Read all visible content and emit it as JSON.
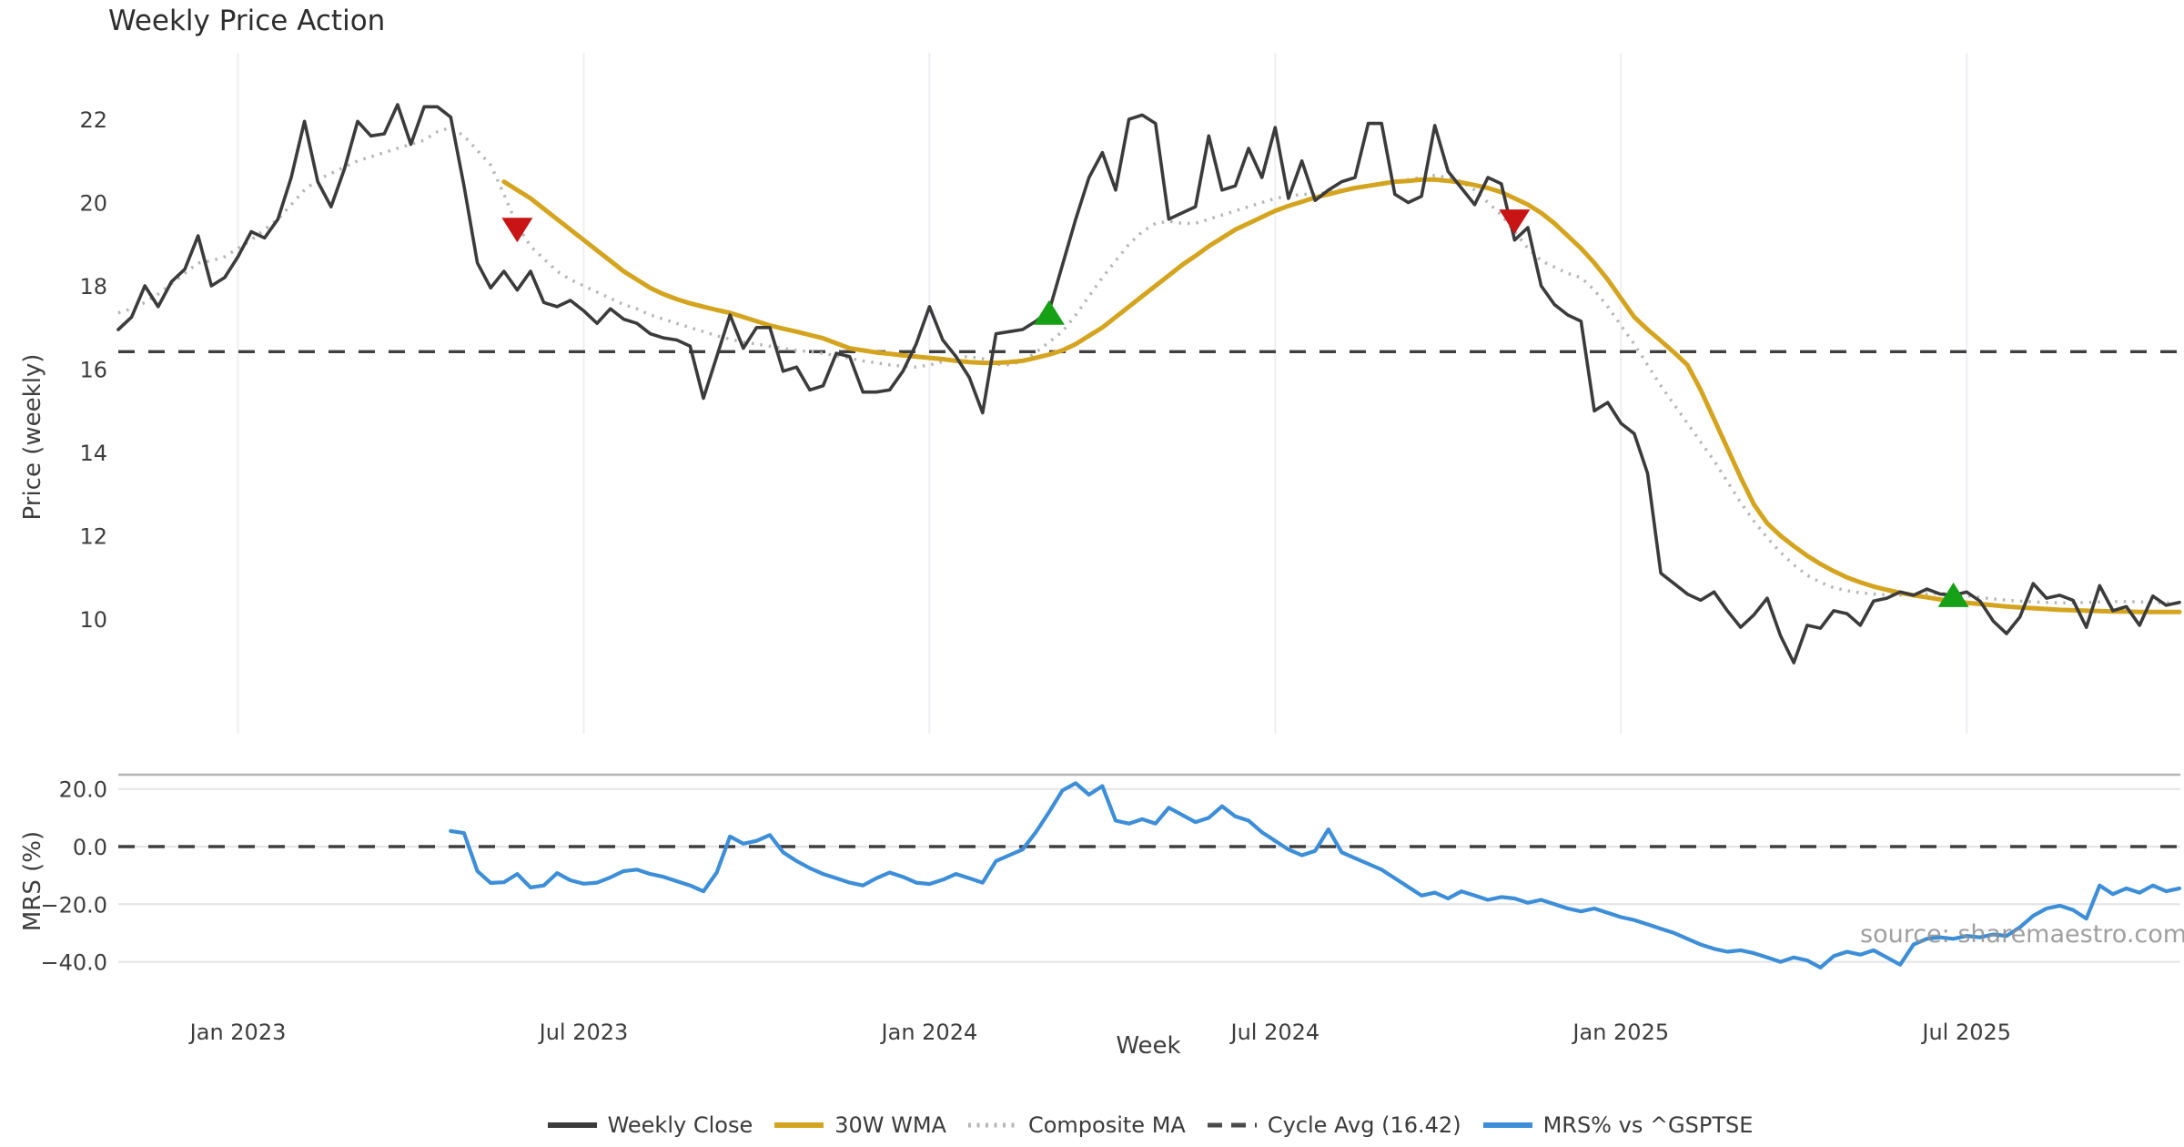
{
  "title": "Weekly Price Action",
  "watermark": "source: sharemaestro.com",
  "x_axis": {
    "label": "Week",
    "tick_labels": [
      "Jan 2023",
      "Jul 2023",
      "Jan 2024",
      "Jul 2024",
      "Jan 2025",
      "Jul 2025"
    ],
    "tick_weeks": [
      9,
      35,
      61,
      87,
      113,
      139
    ]
  },
  "top_panel": {
    "ylabel": "Price (weekly)",
    "ytick_values": [
      10,
      12,
      14,
      16,
      18,
      20,
      22
    ],
    "ytick_labels": [
      "10",
      "12",
      "14",
      "16",
      "18",
      "20",
      "22"
    ],
    "cycle_avg": 16.42
  },
  "bottom_panel": {
    "ylabel": "MRS (%)",
    "ytick_values": [
      20,
      0,
      -20,
      -40
    ],
    "ytick_labels": [
      "20.0",
      "0.0",
      "−20.0",
      "−40.0"
    ],
    "zero_line": 0
  },
  "legend": [
    {
      "label": "Weekly Close",
      "style": "solid",
      "color": "#3b3b3b"
    },
    {
      "label": "30W WMA",
      "style": "solid",
      "color": "#d5a41f"
    },
    {
      "label": "Composite MA",
      "style": "dotted",
      "color": "#b5b5b5"
    },
    {
      "label": "Cycle Avg (16.42)",
      "style": "dashed",
      "color": "#4a4a4a"
    },
    {
      "label": "MRS% vs ^GSPTSE",
      "style": "solid",
      "color": "#3d8ed8"
    }
  ],
  "colors": {
    "weekly_close": "#3b3b3b",
    "wma30": "#d5a41f",
    "composite": "#b5b5b5",
    "cycle_avg": "#3f3f3f",
    "mrs": "#3d8ed8",
    "buy_marker": "#15a015",
    "sell_marker": "#c81414",
    "grid_vertical": "#eef0f3",
    "grid_horizontal": "#e4e4e7",
    "panel_spine": "#b4b4b8"
  },
  "chart_data": [
    {
      "type": "line",
      "panel": "top",
      "title": "Weekly Price Action",
      "xlabel": "Week",
      "ylabel": "Price (weekly)",
      "x_unit": "week_index (week 0 ≈ Nov 2022, ticks: Jan2023=w9, Jul2023=w35, Jan2024=w61, Jul2024=w87, Jan2025=w113, Jul2025=w139)",
      "ylim": [
        8.3,
        23.6
      ],
      "grid": "vertical date gridlines only",
      "cycle_avg_line": {
        "value": 16.42,
        "style": "dashed"
      },
      "series": [
        {
          "name": "Weekly Close",
          "style": "solid",
          "color": "#3b3b3b",
          "start_week": 0,
          "values": [
            16.95,
            17.25,
            18.0,
            17.5,
            18.1,
            18.4,
            19.2,
            18.0,
            18.2,
            18.7,
            19.3,
            19.15,
            19.6,
            20.6,
            21.95,
            20.5,
            19.9,
            20.8,
            21.95,
            21.6,
            21.65,
            22.35,
            21.4,
            22.3,
            22.3,
            22.05,
            20.4,
            18.55,
            17.95,
            18.35,
            17.9,
            18.35,
            17.6,
            17.5,
            17.65,
            17.4,
            17.1,
            17.45,
            17.2,
            17.1,
            16.85,
            16.75,
            16.7,
            16.55,
            15.3,
            16.3,
            17.3,
            16.5,
            17.0,
            17.0,
            15.95,
            16.05,
            15.5,
            15.6,
            16.38,
            16.3,
            15.45,
            15.45,
            15.5,
            15.95,
            16.6,
            17.5,
            16.7,
            16.3,
            15.8,
            14.95,
            16.85,
            16.9,
            16.95,
            17.15,
            17.4,
            18.5,
            19.6,
            20.6,
            21.2,
            20.3,
            22.0,
            22.1,
            21.9,
            19.6,
            19.75,
            19.9,
            21.6,
            20.3,
            20.4,
            21.3,
            20.6,
            21.8,
            20.1,
            21.0,
            20.05,
            20.3,
            20.5,
            20.6,
            21.9,
            21.9,
            20.2,
            20.0,
            20.15,
            21.85,
            20.75,
            20.35,
            19.95,
            20.6,
            20.45,
            19.1,
            19.4,
            18.0,
            17.55,
            17.3,
            17.15,
            15.0,
            15.2,
            14.7,
            14.45,
            13.5,
            11.1,
            10.85,
            10.6,
            10.45,
            10.65,
            10.2,
            9.8,
            10.1,
            10.5,
            9.6,
            8.95,
            9.85,
            9.78,
            10.2,
            10.13,
            9.85,
            10.43,
            10.5,
            10.65,
            10.57,
            10.72,
            10.6,
            10.57,
            10.65,
            10.43,
            9.95,
            9.65,
            10.05,
            10.85,
            10.5,
            10.57,
            10.45,
            9.8,
            10.8,
            10.2,
            10.3,
            9.85,
            10.55,
            10.33,
            10.4
          ]
        },
        {
          "name": "30W WMA",
          "style": "solid",
          "color": "#d5a41f",
          "start_week": 29,
          "values": [
            20.5,
            20.3,
            20.1,
            19.85,
            19.6,
            19.35,
            19.1,
            18.85,
            18.6,
            18.35,
            18.15,
            17.95,
            17.8,
            17.68,
            17.58,
            17.5,
            17.42,
            17.35,
            17.25,
            17.15,
            17.05,
            16.97,
            16.9,
            16.82,
            16.74,
            16.62,
            16.5,
            16.45,
            16.4,
            16.37,
            16.33,
            16.3,
            16.27,
            16.24,
            16.2,
            16.17,
            16.15,
            16.15,
            16.17,
            16.2,
            16.27,
            16.35,
            16.45,
            16.6,
            16.8,
            17.0,
            17.25,
            17.5,
            17.75,
            18.0,
            18.25,
            18.5,
            18.72,
            18.95,
            19.15,
            19.35,
            19.5,
            19.65,
            19.8,
            19.92,
            20.02,
            20.12,
            20.2,
            20.28,
            20.35,
            20.4,
            20.45,
            20.5,
            20.52,
            20.55,
            20.55,
            20.52,
            20.48,
            20.42,
            20.35,
            20.25,
            20.1,
            19.95,
            19.75,
            19.5,
            19.2,
            18.9,
            18.55,
            18.15,
            17.7,
            17.25,
            16.95,
            16.68,
            16.4,
            16.1,
            15.5,
            14.8,
            14.1,
            13.4,
            12.75,
            12.3,
            12.0,
            11.75,
            11.52,
            11.32,
            11.15,
            11.0,
            10.88,
            10.78,
            10.7,
            10.63,
            10.57,
            10.52,
            10.47,
            10.43,
            10.39,
            10.36,
            10.33,
            10.3,
            10.28,
            10.26,
            10.24,
            10.22,
            10.21,
            10.2,
            10.19,
            10.18,
            10.18,
            10.17,
            10.17,
            10.17,
            10.17
          ]
        },
        {
          "name": "Composite MA",
          "style": "dotted",
          "color": "#b5b5b5",
          "start_week": 0,
          "values": [
            17.35,
            17.45,
            17.6,
            17.8,
            18.05,
            18.3,
            18.55,
            18.6,
            18.7,
            18.9,
            19.1,
            19.35,
            19.6,
            19.95,
            20.3,
            20.55,
            20.7,
            20.85,
            21.0,
            21.1,
            21.2,
            21.3,
            21.4,
            21.5,
            21.7,
            21.8,
            21.6,
            21.25,
            20.9,
            20.2,
            19.45,
            18.95,
            18.65,
            18.35,
            18.15,
            18.0,
            17.85,
            17.7,
            17.55,
            17.45,
            17.3,
            17.2,
            17.1,
            17.0,
            16.9,
            16.8,
            16.72,
            16.65,
            16.6,
            16.55,
            16.5,
            16.45,
            16.42,
            16.38,
            16.32,
            16.26,
            16.2,
            16.15,
            16.1,
            16.07,
            16.05,
            16.1,
            16.18,
            16.28,
            16.3,
            16.25,
            16.12,
            16.1,
            16.2,
            16.4,
            16.65,
            16.9,
            17.3,
            17.75,
            18.2,
            18.6,
            19.0,
            19.3,
            19.5,
            19.55,
            19.5,
            19.5,
            19.6,
            19.7,
            19.8,
            19.9,
            20.0,
            20.1,
            20.15,
            20.2,
            20.2,
            20.25,
            20.3,
            20.35,
            20.4,
            20.45,
            20.5,
            20.55,
            20.6,
            20.65,
            20.6,
            20.5,
            20.3,
            20.0,
            19.7,
            19.3,
            18.9,
            18.6,
            18.45,
            18.3,
            18.2,
            17.9,
            17.5,
            17.05,
            16.6,
            16.1,
            15.6,
            15.15,
            14.7,
            14.25,
            13.8,
            13.3,
            12.8,
            12.35,
            11.95,
            11.6,
            11.3,
            11.05,
            10.88,
            10.75,
            10.68,
            10.63,
            10.6,
            10.58,
            10.57,
            10.58,
            10.6,
            10.62,
            10.6,
            10.56,
            10.52,
            10.48,
            10.45,
            10.43,
            10.41,
            10.4,
            10.39,
            10.39,
            10.4,
            10.41,
            10.42,
            10.42,
            10.41,
            10.4,
            10.39,
            10.38
          ]
        }
      ],
      "markers": {
        "sell": [
          {
            "week": 30,
            "price": 19.35
          },
          {
            "week": 105,
            "price": 19.55
          }
        ],
        "buy": [
          {
            "week": 70,
            "price": 17.35
          },
          {
            "week": 138,
            "price": 10.57
          }
        ]
      }
    },
    {
      "type": "line",
      "panel": "bottom",
      "ylabel": "MRS (%)",
      "ylim": [
        -50,
        25
      ],
      "grid": "horizontal gridlines at 20, 0, -20, -40; dashed line at 0",
      "series": [
        {
          "name": "MRS% vs ^GSPTSE",
          "style": "solid",
          "color": "#3d8ed8",
          "start_week": 25,
          "values": [
            5.4,
            4.7,
            -8.5,
            -12.6,
            -12.4,
            -9.5,
            -14.2,
            -13.5,
            -9.2,
            -11.7,
            -12.9,
            -12.5,
            -10.7,
            -8.5,
            -8.0,
            -9.5,
            -10.5,
            -12.0,
            -13.5,
            -15.5,
            -9.0,
            3.5,
            1.0,
            2.0,
            4.0,
            -2.0,
            -5.0,
            -7.5,
            -9.5,
            -11.0,
            -12.5,
            -13.5,
            -11.0,
            -9.0,
            -10.5,
            -12.5,
            -13.0,
            -11.5,
            -9.5,
            -11.0,
            -12.5,
            -5.0,
            -3.0,
            -1.0,
            5.0,
            12.0,
            19.5,
            22.0,
            18.0,
            21.0,
            9.0,
            8.0,
            9.5,
            8.0,
            13.5,
            11.0,
            8.5,
            10.0,
            14.0,
            10.5,
            9.0,
            5.0,
            2.0,
            -1.0,
            -3.0,
            -1.5,
            6.0,
            -2.0,
            -4.0,
            -6.0,
            -8.0,
            -11.0,
            -14.0,
            -17.0,
            -16.0,
            -18.0,
            -15.5,
            -17.0,
            -18.5,
            -17.5,
            -18.0,
            -19.5,
            -18.5,
            -20.0,
            -21.5,
            -22.5,
            -21.5,
            -23.0,
            -24.5,
            -25.5,
            -27.0,
            -28.5,
            -30.0,
            -32.0,
            -34.0,
            -35.5,
            -36.5,
            -36.0,
            -37.0,
            -38.5,
            -40.0,
            -38.5,
            -39.5,
            -42.0,
            -38.0,
            -36.5,
            -37.5,
            -36.0,
            -38.5,
            -41.0,
            -34.0,
            -32.0,
            -31.5,
            -32.0,
            -31.0,
            -31.5,
            -30.5,
            -31.0,
            -28.0,
            -24.0,
            -21.5,
            -20.5,
            -22.0,
            -25.0,
            -13.5,
            -16.5,
            -14.5,
            -16.0,
            -13.5,
            -15.5,
            -14.5
          ]
        }
      ]
    }
  ]
}
